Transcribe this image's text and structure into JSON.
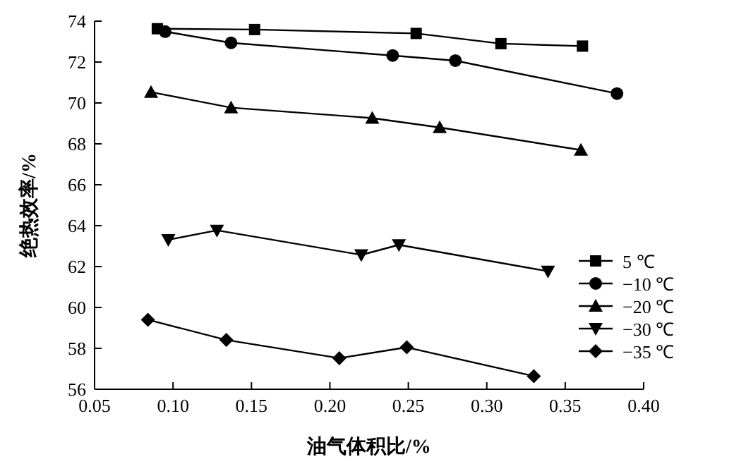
{
  "chart_data": {
    "type": "line",
    "xlabel": "油气体积比/%",
    "ylabel": "绝热效率/%",
    "xlim": [
      0.05,
      0.4
    ],
    "ylim": [
      56,
      74
    ],
    "xticks": [
      {
        "value": 0.05,
        "label": "0.05"
      },
      {
        "value": 0.1,
        "label": "0.10"
      },
      {
        "value": 0.15,
        "label": "0.15"
      },
      {
        "value": 0.2,
        "label": "0.20"
      },
      {
        "value": 0.25,
        "label": "0.25"
      },
      {
        "value": 0.3,
        "label": "0.30"
      },
      {
        "value": 0.35,
        "label": "0.35"
      },
      {
        "value": 0.4,
        "label": "0.40"
      }
    ],
    "yticks": [
      56,
      58,
      60,
      62,
      64,
      66,
      68,
      70,
      72,
      74
    ],
    "legend": "bottom right",
    "line_style": "solid",
    "series": [
      {
        "name": "5 ℃",
        "color": "#000000",
        "marker": "square",
        "x": [
          0.09,
          0.152,
          0.255,
          0.309,
          0.361
        ],
        "values": [
          73.63,
          73.59,
          73.4,
          72.9,
          72.78
        ]
      },
      {
        "name": "−10 ℃",
        "color": "#000000",
        "marker": "circle",
        "x": [
          0.095,
          0.137,
          0.24,
          0.28,
          0.383
        ],
        "values": [
          73.49,
          72.94,
          72.32,
          72.07,
          70.46
        ]
      },
      {
        "name": "−20 ℃",
        "color": "#000000",
        "marker": "triangle",
        "x": [
          0.086,
          0.137,
          0.227,
          0.27,
          0.36
        ],
        "values": [
          70.53,
          69.77,
          69.26,
          68.8,
          67.7
        ]
      },
      {
        "name": "−30 ℃",
        "color": "#000000",
        "marker": "triangle_down",
        "x": [
          0.097,
          0.128,
          0.22,
          0.244,
          0.339
        ],
        "values": [
          63.31,
          63.77,
          62.57,
          63.06,
          61.77
        ]
      },
      {
        "name": "−35 ℃",
        "color": "#000000",
        "marker": "diamond",
        "x": [
          0.084,
          0.134,
          0.206,
          0.249,
          0.33
        ],
        "values": [
          59.4,
          58.41,
          57.52,
          58.05,
          56.64
        ]
      }
    ]
  }
}
